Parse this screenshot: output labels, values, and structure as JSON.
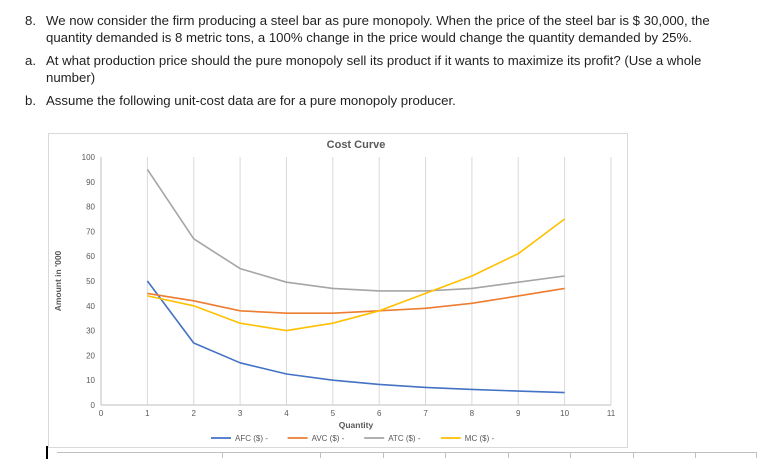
{
  "problem": {
    "item8": {
      "number": "8.",
      "text": "We now consider the firm producing a steel bar as pure monopoly. When the price of the steel bar is $ 30,000, the quantity demanded is 8 metric tons, a 100% change in the price would change the quantity demanded by 25%."
    },
    "item_a": {
      "number": "a.",
      "text": "At what production price should the pure monopoly sell its product if it wants to maximize its profit? (Use a whole number)"
    },
    "item_b": {
      "number": "b.",
      "text": "Assume the following unit-cost data are for a pure monopoly producer."
    }
  },
  "chart_data": {
    "type": "line",
    "title": "Cost Curve",
    "xlabel": "Quantity",
    "ylabel": "Amount in '000",
    "x": [
      1,
      2,
      3,
      4,
      5,
      6,
      7,
      8,
      9,
      10
    ],
    "xlim": [
      0,
      11
    ],
    "ylim": [
      0,
      100
    ],
    "x_ticks": [
      0,
      1,
      2,
      3,
      4,
      5,
      6,
      7,
      8,
      9,
      10,
      11
    ],
    "y_ticks": [
      0,
      10,
      20,
      30,
      40,
      50,
      60,
      70,
      80,
      90,
      100
    ],
    "grid": "vertical-only",
    "legend_position": "bottom",
    "series": [
      {
        "name": "AFC ($) -",
        "color": "#4472C4",
        "values": [
          50,
          25,
          17,
          12.5,
          10,
          8.3,
          7.1,
          6.3,
          5.6,
          5
        ]
      },
      {
        "name": "AVC ($) -",
        "color": "#ED7D31",
        "values": [
          45,
          42,
          38,
          37,
          37,
          38,
          39,
          41,
          44,
          47
        ]
      },
      {
        "name": "ATC ($) -",
        "color": "#A5A5A5",
        "values": [
          95,
          67,
          55,
          49.5,
          47,
          46,
          46,
          47,
          49.5,
          52
        ]
      },
      {
        "name": "MC ($) -",
        "color": "#FFC000",
        "values": [
          44,
          40,
          33,
          30,
          33,
          38,
          45,
          52,
          61,
          75
        ]
      }
    ]
  }
}
